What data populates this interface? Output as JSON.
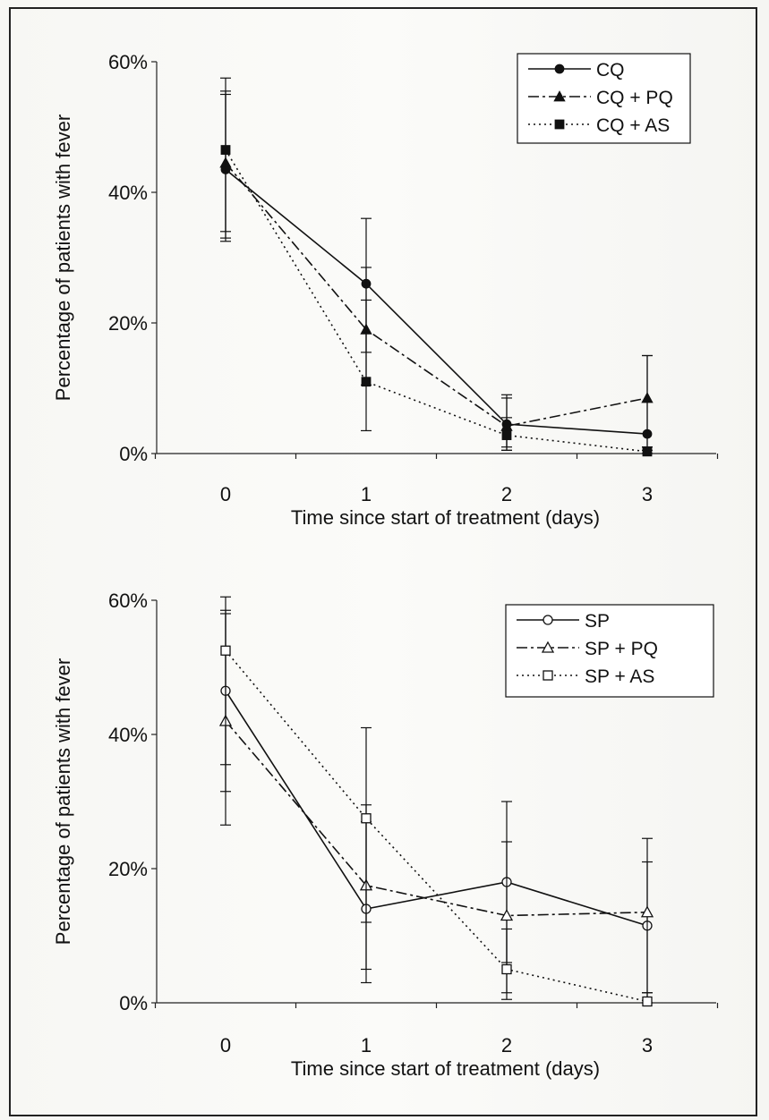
{
  "chart_data": [
    {
      "type": "line",
      "title": "",
      "xlabel": "Time since start of treatment (days)",
      "ylabel": "Percentage of patients with fever",
      "xlim": [
        -0.5,
        3.5
      ],
      "ylim": [
        0,
        60
      ],
      "x": [
        0,
        1,
        2,
        3
      ],
      "x_ticks": [
        "0",
        "1",
        "2",
        "3"
      ],
      "y_ticks": [
        "0%",
        "20%",
        "40%",
        "60%"
      ],
      "legend_position": "top-right",
      "grid": false,
      "series": [
        {
          "name": "CQ",
          "values": [
            43.5,
            26,
            4.5,
            3
          ],
          "error_low": [
            33,
            15.5,
            1,
            1
          ],
          "error_high": [
            55,
            36,
            9,
            15
          ],
          "color": "#111111",
          "line": "solid",
          "marker": "circle",
          "filled": true
        },
        {
          "name": "CQ + PQ",
          "values": [
            44.5,
            19,
            4.2,
            8.5
          ],
          "error_low": [
            34,
            10.5,
            0.5,
            0.5
          ],
          "error_high": [
            57.5,
            28.5,
            8.5,
            15
          ],
          "color": "#111111",
          "line": "dashdot",
          "marker": "triangle",
          "filled": true
        },
        {
          "name": "CQ + AS",
          "values": [
            46.5,
            11,
            2.8,
            0.3
          ],
          "error_low": [
            32.5,
            3.5,
            0.5,
            0
          ],
          "error_high": [
            55.5,
            23.5,
            5.5,
            1
          ],
          "color": "#111111",
          "line": "dotted",
          "marker": "square",
          "filled": true
        }
      ]
    },
    {
      "type": "line",
      "title": "",
      "xlabel": "Time since start of treatment (days)",
      "ylabel": "Percentage of patients with fever",
      "xlim": [
        -0.5,
        3.5
      ],
      "ylim": [
        0,
        60
      ],
      "x": [
        0,
        1,
        2,
        3
      ],
      "x_ticks": [
        "0",
        "1",
        "2",
        "3"
      ],
      "y_ticks": [
        "0%",
        "20%",
        "40%",
        "60%"
      ],
      "legend_position": "top-right",
      "grid": false,
      "series": [
        {
          "name": "SP",
          "values": [
            46.5,
            14,
            18,
            11.5
          ],
          "error_low": [
            35.5,
            3,
            0.5,
            0
          ],
          "error_high": [
            60.5,
            27,
            30,
            24.5
          ],
          "color": "#111111",
          "line": "solid",
          "marker": "circle",
          "filled": false
        },
        {
          "name": "SP + PQ",
          "values": [
            42,
            17.5,
            13,
            13.5
          ],
          "error_low": [
            31.5,
            5,
            6,
            1.5
          ],
          "error_high": [
            58,
            29.5,
            24,
            21
          ],
          "color": "#111111",
          "line": "dashdot",
          "marker": "triangle",
          "filled": false
        },
        {
          "name": "SP + AS",
          "values": [
            52.5,
            27.5,
            5,
            0.2
          ],
          "error_low": [
            26.5,
            12,
            1.5,
            0
          ],
          "error_high": [
            58.5,
            41,
            11,
            1.5
          ],
          "color": "#111111",
          "line": "dotted",
          "marker": "square",
          "filled": false
        }
      ]
    }
  ]
}
